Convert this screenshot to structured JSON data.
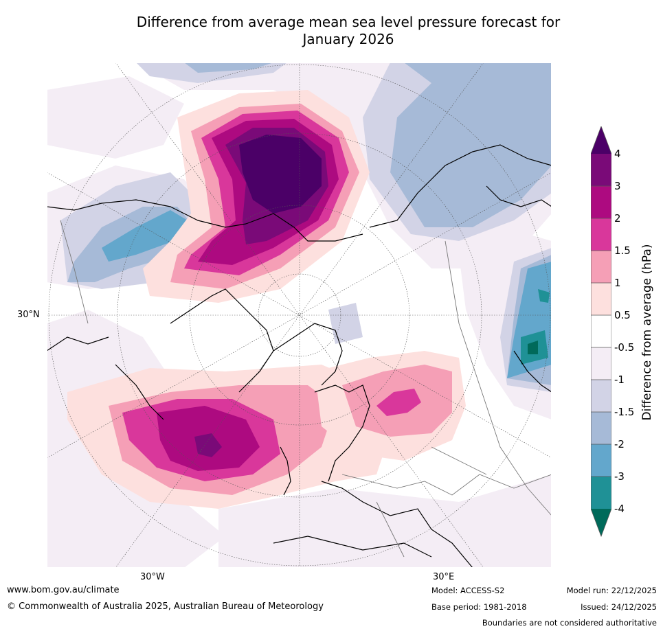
{
  "title_line1": "Difference from average mean sea level pressure forecast for",
  "title_line2": "January 2026",
  "axis_labels": {
    "lat_30n": "30°N",
    "lon_30w": "30°W",
    "lon_30e": "30°E"
  },
  "colorbar": {
    "label": "Difference from average (hPa)",
    "ticks": [
      "4",
      "3",
      "2",
      "1.5",
      "1",
      "0.5",
      "-0.5",
      "-1",
      "-1.5",
      "-2",
      "-3",
      "-4"
    ],
    "colors": {
      "gt4": "#4b0067",
      "3_4": "#7a0a78",
      "2_3": "#ad0a80",
      "1.5_2": "#d9379b",
      "1_1.5": "#f59fb6",
      "0.5_1": "#fde0de",
      "neutral": "#ffffff",
      "m1_m0.5": "#f4edf5",
      "m1.5_m1": "#d2d3e6",
      "m2_m1.5": "#a6bad7",
      "m3_m2": "#63a7cc",
      "m4_m3": "#1f9196",
      "lt_m4": "#006a5a"
    }
  },
  "footer": {
    "url": "www.bom.gov.au/climate",
    "copyright": "© Commonwealth of Australia 2025, Australian Bureau of Meteorology",
    "model": "Model: ACCESS-S2",
    "base_period": "Base period: 1981-2018",
    "model_run": "Model run: 22/12/2025",
    "issued": "Issued: 24/12/2025",
    "disclaimer": "Boundaries are not considered authoritative"
  }
}
